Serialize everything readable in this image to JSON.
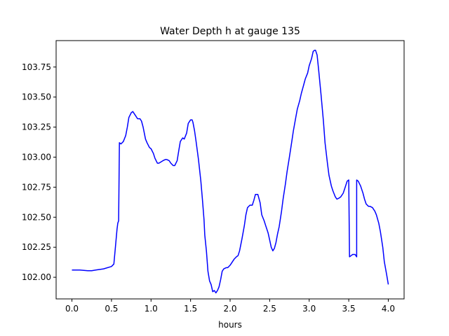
{
  "chart_data": {
    "type": "line",
    "title": "Water Depth h at gauge 135",
    "xlabel": "hours",
    "ylabel": "",
    "xlim": [
      -0.2,
      4.2
    ],
    "ylim": [
      101.82,
      103.97
    ],
    "xticks": [
      0.0,
      0.5,
      1.0,
      1.5,
      2.0,
      2.5,
      3.0,
      3.5,
      4.0
    ],
    "xtick_labels": [
      "0.0",
      "0.5",
      "1.0",
      "1.5",
      "2.0",
      "2.5",
      "3.0",
      "3.5",
      "4.0"
    ],
    "yticks": [
      102.0,
      102.25,
      102.5,
      102.75,
      103.0,
      103.25,
      103.5,
      103.75
    ],
    "ytick_labels": [
      "102.00",
      "102.25",
      "102.50",
      "102.75",
      "103.00",
      "103.25",
      "103.50",
      "103.75"
    ],
    "grid": false,
    "series": [
      {
        "color": "#0000ff",
        "x": [
          0.0,
          0.1,
          0.2,
          0.25,
          0.3,
          0.4,
          0.5,
          0.53,
          0.55,
          0.57,
          0.58,
          0.59,
          0.6,
          0.6,
          0.62,
          0.65,
          0.68,
          0.7,
          0.72,
          0.75,
          0.77,
          0.8,
          0.83,
          0.86,
          0.88,
          0.9,
          0.93,
          0.95,
          0.98,
          1.0,
          1.03,
          1.05,
          1.08,
          1.1,
          1.15,
          1.18,
          1.2,
          1.23,
          1.25,
          1.28,
          1.3,
          1.33,
          1.35,
          1.37,
          1.4,
          1.42,
          1.45,
          1.47,
          1.5,
          1.52,
          1.53,
          1.55,
          1.57,
          1.6,
          1.63,
          1.65,
          1.67,
          1.68,
          1.7,
          1.72,
          1.74,
          1.76,
          1.78,
          1.8,
          1.82,
          1.84,
          1.86,
          1.88,
          1.9,
          1.92,
          1.95,
          1.97,
          2.0,
          2.05,
          2.08,
          2.1,
          2.12,
          2.15,
          2.18,
          2.2,
          2.22,
          2.25,
          2.28,
          2.3,
          2.32,
          2.35,
          2.38,
          2.4,
          2.43,
          2.45,
          2.48,
          2.5,
          2.52,
          2.54,
          2.56,
          2.58,
          2.6,
          2.62,
          2.65,
          2.67,
          2.7,
          2.72,
          2.75,
          2.78,
          2.8,
          2.83,
          2.85,
          2.88,
          2.9,
          2.93,
          2.95,
          2.98,
          3.0,
          3.03,
          3.05,
          3.07,
          3.08,
          3.1,
          3.12,
          3.15,
          3.18,
          3.2,
          3.23,
          3.25,
          3.28,
          3.3,
          3.33,
          3.35,
          3.38,
          3.4,
          3.43,
          3.45,
          3.48,
          3.5,
          3.51,
          3.51,
          3.53,
          3.55,
          3.58,
          3.6,
          3.6,
          3.62,
          3.65,
          3.68,
          3.7,
          3.72,
          3.75,
          3.77,
          3.8,
          3.83,
          3.85,
          3.88,
          3.9,
          3.93,
          3.95,
          3.98,
          4.0
        ],
        "y": [
          102.06,
          102.06,
          102.055,
          102.055,
          102.06,
          102.07,
          102.09,
          102.11,
          102.25,
          102.4,
          102.45,
          102.47,
          103.12,
          103.12,
          103.11,
          103.13,
          103.18,
          103.25,
          103.33,
          103.37,
          103.38,
          103.35,
          103.32,
          103.32,
          103.3,
          103.25,
          103.15,
          103.12,
          103.08,
          103.07,
          103.03,
          102.99,
          102.95,
          102.95,
          102.97,
          102.98,
          102.98,
          102.97,
          102.95,
          102.93,
          102.93,
          102.97,
          103.05,
          103.13,
          103.16,
          103.15,
          103.2,
          103.28,
          103.31,
          103.31,
          103.29,
          103.22,
          103.13,
          102.98,
          102.8,
          102.65,
          102.48,
          102.35,
          102.22,
          102.05,
          101.97,
          101.94,
          101.88,
          101.89,
          101.87,
          101.89,
          101.92,
          101.98,
          102.05,
          102.07,
          102.08,
          102.08,
          102.1,
          102.15,
          102.17,
          102.18,
          102.22,
          102.32,
          102.43,
          102.52,
          102.58,
          102.6,
          102.6,
          102.64,
          102.69,
          102.69,
          102.62,
          102.52,
          102.47,
          102.43,
          102.37,
          102.31,
          102.25,
          102.22,
          102.24,
          102.29,
          102.36,
          102.42,
          102.55,
          102.65,
          102.78,
          102.88,
          103.0,
          103.13,
          103.22,
          103.33,
          103.4,
          103.47,
          103.53,
          103.6,
          103.65,
          103.7,
          103.76,
          103.82,
          103.88,
          103.89,
          103.89,
          103.85,
          103.72,
          103.52,
          103.3,
          103.12,
          102.95,
          102.85,
          102.76,
          102.72,
          102.67,
          102.65,
          102.66,
          102.67,
          102.7,
          102.74,
          102.8,
          102.81,
          102.17,
          102.17,
          102.18,
          102.19,
          102.19,
          102.17,
          102.81,
          102.8,
          102.76,
          102.7,
          102.65,
          102.61,
          102.59,
          102.59,
          102.58,
          102.55,
          102.52,
          102.45,
          102.38,
          102.25,
          102.13,
          102.02,
          101.94
        ]
      }
    ]
  }
}
